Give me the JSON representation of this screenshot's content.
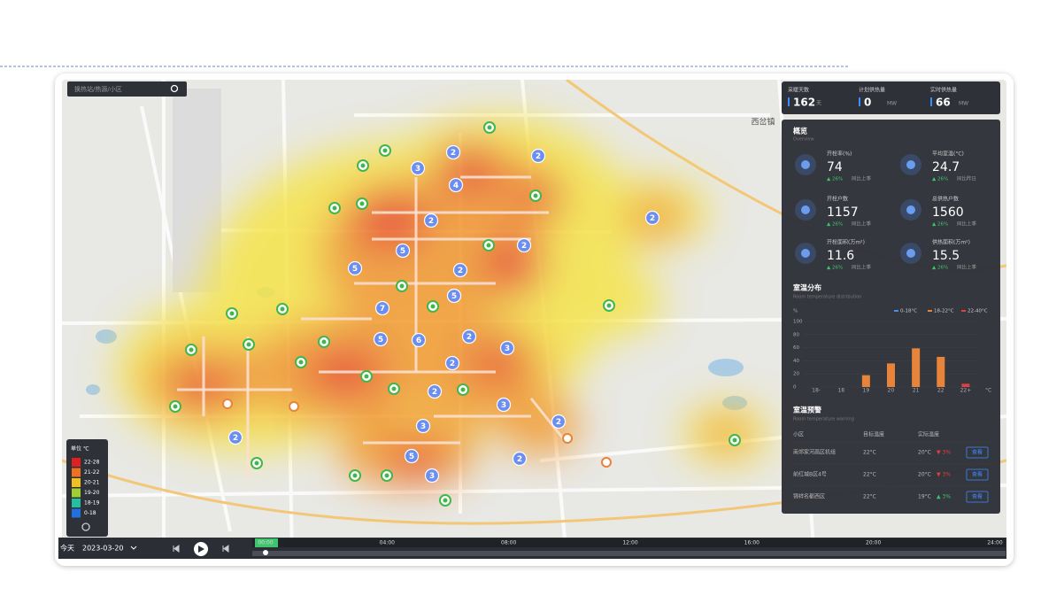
{
  "search": {
    "placeholder": "换热站/热源/小区"
  },
  "stats": [
    {
      "label": "采暖天数",
      "value": 162,
      "unit": "天"
    },
    {
      "label": "计划供热量",
      "value": 0,
      "unit": "MW"
    },
    {
      "label": "实时供热量",
      "value": 66,
      "unit": "MW"
    }
  ],
  "overview": {
    "title": "概览",
    "subtitle": "Overview",
    "kpis": [
      {
        "label": "开栓率(%)",
        "value": 74,
        "change": "▲ 26%",
        "compare": "同比上季"
      },
      {
        "label": "平均室温(°C)",
        "value": 24.7,
        "change": "▲ 26%",
        "compare": "同比昨日"
      },
      {
        "label": "开栓户数",
        "value": 1157,
        "change": "▲ 26%",
        "compare": "同比上季"
      },
      {
        "label": "总供热户数",
        "value": 1560,
        "change": "▲ 26%",
        "compare": "同比上季"
      },
      {
        "label": "开栓面积(万m²)",
        "value": 11.6,
        "change": "▲ 26%",
        "compare": "同比上季"
      },
      {
        "label": "供热面积(万m²)",
        "value": 15.5,
        "change": "▲ 26%",
        "compare": "同比上季"
      }
    ]
  },
  "distribution": {
    "title": "室温分布",
    "subtitle": "Room temperature distribution",
    "y_unit": "%",
    "x_unit": "°C",
    "legend": [
      {
        "name": "0-18°C",
        "color": "#4a90e2"
      },
      {
        "name": "18-22°C",
        "color": "#e8833a"
      },
      {
        "name": "22-40°C",
        "color": "#e04040"
      }
    ],
    "categories": [
      "18-",
      "18",
      "19",
      "20",
      "21",
      "22",
      "22+"
    ],
    "values": [
      0,
      0,
      18,
      36,
      59,
      46,
      5
    ],
    "colors": [
      "#4a90e2",
      "#4a90e2",
      "#e8833a",
      "#e8833a",
      "#e8833a",
      "#e8833a",
      "#e04040"
    ],
    "ylim": [
      0,
      100
    ],
    "yticks": [
      0,
      20,
      40,
      60,
      80,
      100
    ]
  },
  "warning": {
    "title": "室温预警",
    "subtitle": "Room temperature warning",
    "columns": [
      "小区",
      "目标温度",
      "实际温度"
    ],
    "rows": [
      {
        "name": "南郊家河高区机组",
        "target": "22°C",
        "actual": "20°C",
        "change": "▼ 3%",
        "action": "查看"
      },
      {
        "name": "前红城B区4号",
        "target": "22°C",
        "actual": "20°C",
        "change": "▼ 3%",
        "action": "查看"
      },
      {
        "name": "锦祥名都西区",
        "target": "22°C",
        "actual": "19°C",
        "change": "▲ 3%",
        "action": "查看"
      }
    ]
  },
  "legend": {
    "title": "单位 ℃",
    "items": [
      {
        "label": "22-28",
        "color": "#e02020"
      },
      {
        "label": "21-22",
        "color": "#f07020"
      },
      {
        "label": "20-21",
        "color": "#f0c020"
      },
      {
        "label": "19-20",
        "color": "#a0d030"
      },
      {
        "label": "18-19",
        "color": "#20c0a0"
      },
      {
        "label": "0-18",
        "color": "#2070e0"
      }
    ]
  },
  "timeline": {
    "day": "今天",
    "date": "2023-03-20",
    "ticks": [
      "00:00",
      "04:00",
      "08:00",
      "12:00",
      "16:00",
      "20:00",
      "24:00"
    ]
  },
  "map": {
    "place": "西岔镇",
    "clusters": [
      2,
      3,
      2,
      4,
      2,
      2,
      5,
      2,
      5,
      2,
      5,
      7,
      6,
      5,
      2,
      3,
      2,
      2,
      3,
      2,
      3,
      2,
      5,
      2,
      3
    ]
  }
}
